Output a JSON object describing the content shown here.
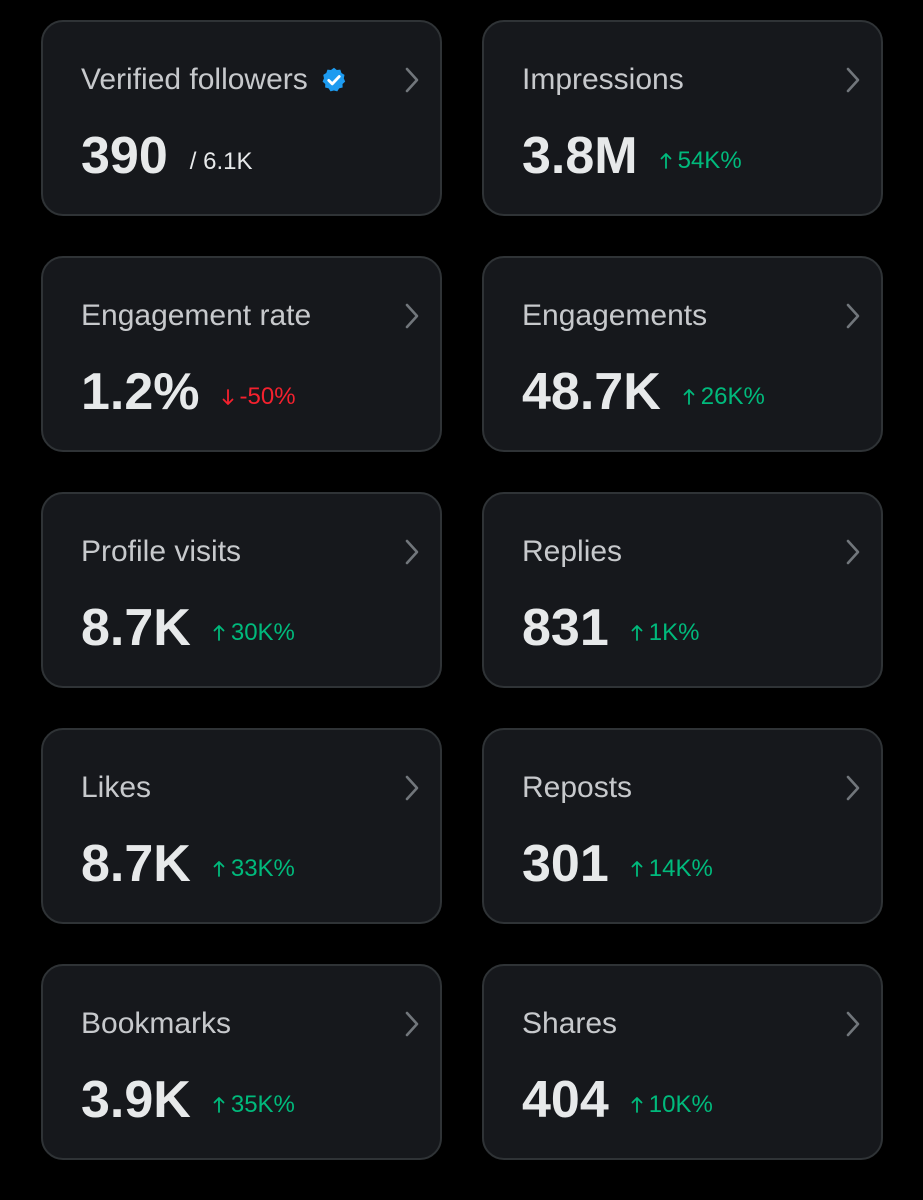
{
  "colors": {
    "background": "#000000",
    "card": "#16181c",
    "positive": "#00ba7c",
    "negative": "#f4212e",
    "verified": "#1d9bf0"
  },
  "cards": [
    {
      "label": "Verified followers",
      "value": "390",
      "sub": "/ 6.1K",
      "verified_icon": "verified-badge-icon"
    },
    {
      "label": "Impressions",
      "value": "3.8M",
      "delta": "54K%",
      "direction": "up"
    },
    {
      "label": "Engagement rate",
      "value": "1.2%",
      "delta": "-50%",
      "direction": "down"
    },
    {
      "label": "Engagements",
      "value": "48.7K",
      "delta": "26K%",
      "direction": "up"
    },
    {
      "label": "Profile visits",
      "value": "8.7K",
      "delta": "30K%",
      "direction": "up"
    },
    {
      "label": "Replies",
      "value": "831",
      "delta": "1K%",
      "direction": "up"
    },
    {
      "label": "Likes",
      "value": "8.7K",
      "delta": "33K%",
      "direction": "up"
    },
    {
      "label": "Reposts",
      "value": "301",
      "delta": "14K%",
      "direction": "up"
    },
    {
      "label": "Bookmarks",
      "value": "3.9K",
      "delta": "35K%",
      "direction": "up"
    },
    {
      "label": "Shares",
      "value": "404",
      "delta": "10K%",
      "direction": "up"
    }
  ]
}
